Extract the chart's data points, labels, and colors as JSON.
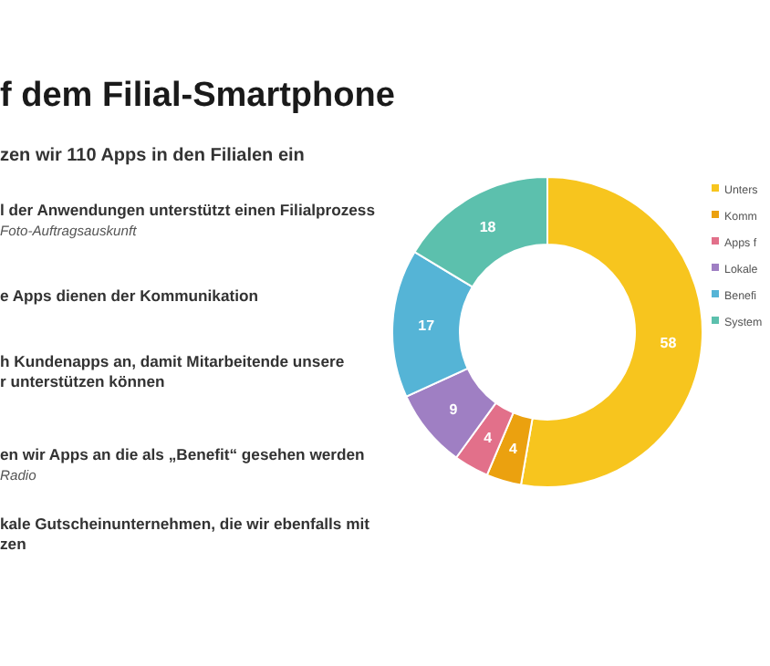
{
  "chart_data": {
    "type": "donut",
    "title": "f dem Filial-Smartphone",
    "subtitle": "zen wir 110 Apps in den Filialen ein",
    "categories": [
      "Unters",
      "Komm",
      "Apps f",
      "Lokale",
      "Benefi",
      "System"
    ],
    "values": [
      58,
      4,
      4,
      9,
      17,
      18
    ],
    "colors": [
      "#f7c51e",
      "#eba10f",
      "#e2708a",
      "#9f7fc3",
      "#55b4d6",
      "#5cc0ad"
    ],
    "data_labels": true,
    "legend": "right",
    "annotations": [
      "l der Anwendungen unterstützt einen Filialprozess",
      "Foto-Auftragsauskunft",
      "e Apps dienen der Kommunikation",
      "h Kundenapps an, damit Mitarbeitende unsere",
      "r unterstützen können",
      "en wir Apps an die als „Benefit“ gesehen werden",
      "Radio",
      "kale Gutscheinunternehmen, die wir ebenfalls mit",
      "zen"
    ]
  }
}
